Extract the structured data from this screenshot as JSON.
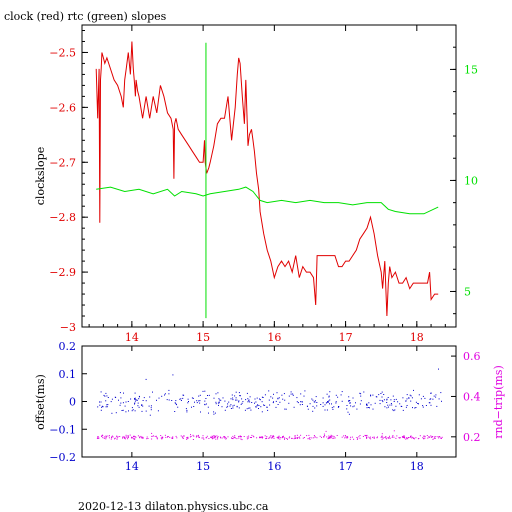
{
  "title": "clock (red) rtc (green) slopes",
  "footer": "2020-12-13 dilaton.physics.ubc.ca",
  "colors": {
    "clock": "#e00000",
    "rtc": "#00e000",
    "offset": "#0000cc",
    "roundtrip": "#e000e0",
    "axis": "#000000"
  },
  "chart_data": [
    {
      "type": "line",
      "title": "clock (red) rtc (green) slopes",
      "ylabel": "clockslope",
      "xlim": [
        13.3,
        18.55
      ],
      "ylim": [
        -3.0,
        -2.45
      ],
      "y2lim": [
        3.4,
        17.0
      ],
      "x_ticks": [
        14,
        15,
        16,
        17,
        18
      ],
      "x_tick_labels": [
        "14",
        "15",
        "16",
        "17",
        "18"
      ],
      "y_ticks": [
        -3.0,
        -2.9,
        -2.8,
        -2.7,
        -2.6,
        -2.5
      ],
      "y_tick_labels": [
        "−3",
        "−2.9",
        "−2.8",
        "−2.7",
        "−2.6",
        "−2.5"
      ],
      "y2_ticks": [
        5,
        10,
        15
      ],
      "y2_tick_labels": [
        "5",
        "10",
        "15"
      ],
      "series": [
        {
          "name": "clock",
          "axis": "left",
          "x": [
            13.5,
            13.52,
            13.54,
            13.55,
            13.56,
            13.57,
            13.58,
            13.6,
            13.62,
            13.65,
            13.7,
            13.75,
            13.8,
            13.85,
            13.88,
            13.9,
            13.92,
            13.95,
            13.98,
            14.0,
            14.02,
            14.04,
            14.05,
            14.06,
            14.08,
            14.1,
            14.15,
            14.2,
            14.25,
            14.3,
            14.35,
            14.4,
            14.45,
            14.5,
            14.55,
            14.58,
            14.59,
            14.6,
            14.62,
            14.65,
            14.7,
            14.75,
            14.8,
            14.85,
            14.9,
            14.95,
            15.0,
            15.02,
            15.03,
            15.05,
            15.08,
            15.1,
            15.15,
            15.2,
            15.25,
            15.3,
            15.35,
            15.4,
            15.45,
            15.48,
            15.5,
            15.52,
            15.55,
            15.58,
            15.6,
            15.63,
            15.65,
            15.68,
            15.7,
            15.72,
            15.75,
            15.78,
            15.8,
            15.85,
            15.9,
            15.95,
            16.0,
            16.05,
            16.1,
            16.15,
            16.2,
            16.25,
            16.3,
            16.35,
            16.4,
            16.45,
            16.5,
            16.55,
            16.58,
            16.6,
            16.62,
            16.65,
            16.7,
            16.75,
            16.8,
            16.85,
            16.9,
            16.95,
            17.0,
            17.05,
            17.1,
            17.15,
            17.2,
            17.25,
            17.3,
            17.35,
            17.4,
            17.45,
            17.5,
            17.52,
            17.55,
            17.58,
            17.6,
            17.62,
            17.65,
            17.7,
            17.75,
            17.8,
            17.85,
            17.9,
            17.95,
            18.0,
            18.05,
            18.1,
            18.15,
            18.18,
            18.2,
            18.25,
            18.3
          ],
          "y": [
            -2.53,
            -2.62,
            -2.53,
            -2.81,
            -2.55,
            -2.53,
            -2.5,
            -2.51,
            -2.52,
            -2.51,
            -2.53,
            -2.55,
            -2.56,
            -2.58,
            -2.6,
            -2.55,
            -2.53,
            -2.5,
            -2.54,
            -2.48,
            -2.53,
            -2.56,
            -2.58,
            -2.55,
            -2.57,
            -2.58,
            -2.62,
            -2.58,
            -2.62,
            -2.58,
            -2.61,
            -2.56,
            -2.58,
            -2.61,
            -2.62,
            -2.64,
            -2.73,
            -2.63,
            -2.62,
            -2.64,
            -2.65,
            -2.66,
            -2.67,
            -2.68,
            -2.69,
            -2.7,
            -2.7,
            -2.66,
            -2.7,
            -2.72,
            -2.71,
            -2.7,
            -2.67,
            -2.63,
            -2.62,
            -2.62,
            -2.58,
            -2.66,
            -2.6,
            -2.54,
            -2.51,
            -2.52,
            -2.58,
            -2.63,
            -2.55,
            -2.67,
            -2.65,
            -2.64,
            -2.66,
            -2.68,
            -2.72,
            -2.75,
            -2.79,
            -2.83,
            -2.86,
            -2.88,
            -2.91,
            -2.89,
            -2.88,
            -2.89,
            -2.88,
            -2.9,
            -2.87,
            -2.91,
            -2.89,
            -2.9,
            -2.9,
            -2.91,
            -2.96,
            -2.87,
            -2.87,
            -2.87,
            -2.87,
            -2.87,
            -2.87,
            -2.87,
            -2.89,
            -2.89,
            -2.88,
            -2.88,
            -2.87,
            -2.86,
            -2.84,
            -2.83,
            -2.82,
            -2.8,
            -2.83,
            -2.87,
            -2.9,
            -2.93,
            -2.88,
            -2.98,
            -2.92,
            -2.89,
            -2.91,
            -2.9,
            -2.92,
            -2.92,
            -2.91,
            -2.93,
            -2.92,
            -2.92,
            -2.92,
            -2.92,
            -2.92,
            -2.9,
            -2.95,
            -2.94,
            -2.94
          ]
        },
        {
          "name": "rtc",
          "axis": "right",
          "x": [
            13.5,
            13.7,
            13.9,
            14.1,
            14.3,
            14.5,
            14.6,
            14.7,
            14.9,
            15.0,
            15.1,
            15.3,
            15.5,
            15.6,
            15.7,
            15.8,
            15.9,
            16.1,
            16.3,
            16.5,
            16.7,
            16.9,
            17.1,
            17.3,
            17.5,
            17.6,
            17.7,
            17.9,
            18.1,
            18.3
          ],
          "y": [
            9.6,
            9.7,
            9.5,
            9.6,
            9.4,
            9.6,
            9.3,
            9.5,
            9.4,
            9.3,
            9.4,
            9.5,
            9.6,
            9.7,
            9.5,
            9.1,
            9.0,
            9.1,
            9.0,
            9.1,
            9.0,
            9.0,
            8.9,
            9.0,
            9.0,
            8.7,
            8.6,
            8.5,
            8.5,
            8.8
          ]
        }
      ],
      "annotations": [
        {
          "series": "rtc",
          "type": "spike",
          "x": 15.04,
          "y_range": [
            3.8,
            16.2
          ]
        }
      ]
    },
    {
      "type": "scatter",
      "ylabel": "offset(ms)",
      "y2label": "rnd−trip(ms)",
      "xlim": [
        13.3,
        18.55
      ],
      "ylim": [
        -0.2,
        0.2
      ],
      "y2lim": [
        0.1,
        0.65
      ],
      "x_ticks": [
        14,
        15,
        16,
        17,
        18
      ],
      "x_tick_labels": [
        "14",
        "15",
        "16",
        "17",
        "18"
      ],
      "y_ticks": [
        -0.2,
        -0.1,
        0,
        0.1,
        0.2
      ],
      "y_tick_labels": [
        "−0.2",
        "−0.1",
        "0",
        "0.1",
        "0.2"
      ],
      "y2_ticks": [
        0.2,
        0.4,
        0.6
      ],
      "y2_tick_labels": [
        "0.2",
        "0.4",
        "0.6"
      ],
      "series": [
        {
          "name": "offset",
          "axis": "left",
          "center": 0.0,
          "spread": 0.045,
          "x_range": [
            13.5,
            18.35
          ]
        },
        {
          "name": "rnd-trip",
          "axis": "right",
          "center": 0.2,
          "spread": 0.012,
          "x_range": [
            13.5,
            18.35
          ]
        }
      ]
    }
  ]
}
